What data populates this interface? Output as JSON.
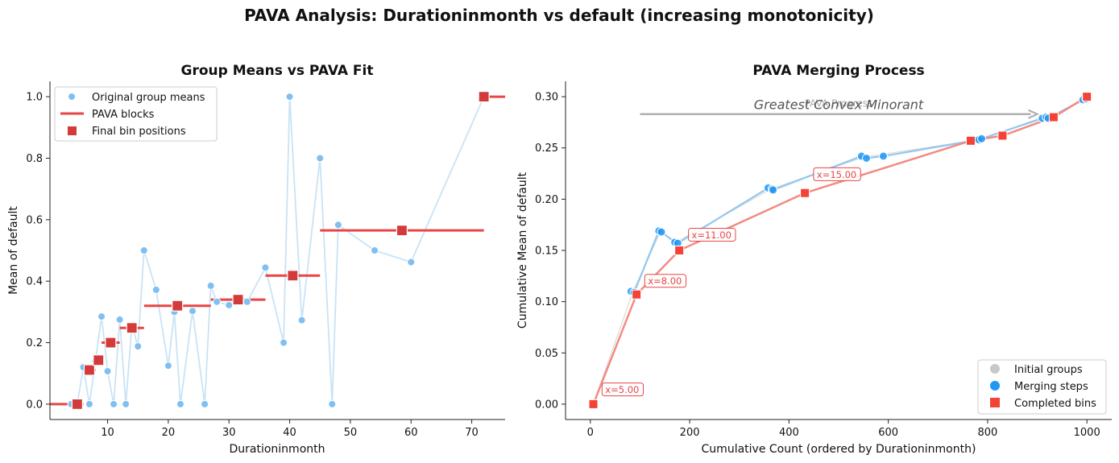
{
  "suptitle": "PAVA Analysis: Durationinmonth vs default (increasing monotonicity)",
  "colors": {
    "original": "#7fbff2",
    "original_line": "#c9e3f5",
    "pava": "#e84545",
    "bin_marker": "#d33b3b",
    "merge": "#2196f3",
    "merge_line": "#92c7ef",
    "initial": "#c8c8c8",
    "gcm_line": "#f28b82",
    "progress_arrow": "#b0b0b0"
  },
  "chart_data": [
    {
      "type": "scatter",
      "title": "Group Means vs PAVA Fit",
      "xlabel": "Durationinmonth",
      "ylabel": "Mean of default",
      "xlim": [
        0.5,
        75.5
      ],
      "ylim": [
        -0.05,
        1.05
      ],
      "xticks": [
        10,
        20,
        30,
        40,
        50,
        60,
        70
      ],
      "yticks": [
        0.0,
        0.2,
        0.4,
        0.6,
        0.8,
        1.0
      ],
      "ytick_labels": [
        "0.0",
        "0.2",
        "0.4",
        "0.6",
        "0.8",
        "1.0"
      ],
      "legend": {
        "position": "top-left",
        "entries": [
          "Original group means",
          "PAVA blocks",
          "Final bin positions"
        ]
      },
      "series": [
        {
          "name": "Original group means",
          "kind": "scatter-line",
          "x": [
            4,
            5,
            6,
            7,
            8,
            9,
            10,
            11,
            12,
            13,
            14,
            15,
            16,
            18,
            20,
            21,
            22,
            24,
            26,
            27,
            28,
            30,
            33,
            36,
            39,
            40,
            42,
            45,
            47,
            48,
            54,
            60,
            72
          ],
          "y": [
            0.0,
            0.0,
            0.12,
            0.0,
            0.14,
            0.285,
            0.107,
            0.0,
            0.275,
            0.0,
            0.257,
            0.188,
            0.5,
            0.372,
            0.125,
            0.3,
            0.0,
            0.303,
            0.0,
            0.385,
            0.333,
            0.322,
            0.333,
            0.444,
            0.2,
            1.0,
            0.273,
            0.8,
            0.0,
            0.583,
            0.5,
            0.462,
            1.0
          ]
        },
        {
          "name": "PAVA blocks",
          "kind": "segments",
          "segments": [
            {
              "x0": 0.5,
              "x1": 6,
              "y": 0.0
            },
            {
              "x0": 6,
              "x1": 8,
              "y": 0.111
            },
            {
              "x0": 8,
              "x1": 9,
              "y": 0.143
            },
            {
              "x0": 9,
              "x1": 12,
              "y": 0.2
            },
            {
              "x0": 12,
              "x1": 16,
              "y": 0.248
            },
            {
              "x0": 16,
              "x1": 27,
              "y": 0.32
            },
            {
              "x0": 27,
              "x1": 36,
              "y": 0.34
            },
            {
              "x0": 36,
              "x1": 45,
              "y": 0.418
            },
            {
              "x0": 45,
              "x1": 72,
              "y": 0.565
            },
            {
              "x0": 72,
              "x1": 75.5,
              "y": 1.0
            }
          ]
        },
        {
          "name": "Final bin positions",
          "kind": "square",
          "x": [
            5,
            7,
            8.5,
            10.5,
            14,
            21.5,
            31.5,
            40.5,
            58.5,
            72
          ],
          "y": [
            0.0,
            0.111,
            0.143,
            0.2,
            0.248,
            0.32,
            0.34,
            0.418,
            0.565,
            1.0
          ]
        }
      ]
    },
    {
      "type": "line",
      "title": "PAVA Merging Process",
      "xlabel": "Cumulative Count (ordered by Durationinmonth)",
      "ylabel": "Cumulative Mean of default",
      "xlim": [
        -50,
        1050
      ],
      "ylim": [
        -0.015,
        0.315
      ],
      "xticks": [
        0,
        200,
        400,
        600,
        800,
        1000
      ],
      "yticks": [
        0.0,
        0.05,
        0.1,
        0.15,
        0.2,
        0.25,
        0.3
      ],
      "ytick_labels": [
        "0.00",
        "0.05",
        "0.10",
        "0.15",
        "0.20",
        "0.25",
        "0.30"
      ],
      "annotation": "Greatest Convex Minorant",
      "arrow_caption": "PAVA Progress",
      "arrow": {
        "x0": 100,
        "x1": 900,
        "y": 0.283
      },
      "legend": {
        "position": "bottom-right",
        "entries": [
          "Initial groups",
          "Merging steps",
          "Completed bins"
        ]
      },
      "series": [
        {
          "name": "Initial groups",
          "kind": "line",
          "x": [
            6,
            86,
            141,
            173,
            364,
            550,
            782,
            916,
            998
          ],
          "y": [
            0.0,
            0.11,
            0.168,
            0.158,
            0.21,
            0.241,
            0.258,
            0.279,
            0.297
          ]
        },
        {
          "name": "Merging steps",
          "kind": "scatter-line",
          "x": [
            82,
            88,
            138,
            143,
            170,
            176,
            358,
            366,
            368,
            546,
            556,
            590,
            782,
            788,
            910,
            918,
            922,
            992,
            998
          ],
          "y": [
            0.11,
            0.109,
            0.169,
            0.168,
            0.158,
            0.157,
            0.211,
            0.21,
            0.209,
            0.242,
            0.24,
            0.242,
            0.258,
            0.259,
            0.279,
            0.28,
            0.279,
            0.297,
            0.298
          ]
        },
        {
          "name": "Completed bins",
          "kind": "square-line",
          "x": [
            6,
            93,
            179,
            432,
            766,
            830,
            933,
            1000
          ],
          "y": [
            0.0,
            0.107,
            0.15,
            0.206,
            0.257,
            0.262,
            0.28,
            0.3
          ]
        }
      ],
      "labels": [
        {
          "text": "x=5.00",
          "x": 30,
          "y": 0.012
        },
        {
          "text": "x=8.00",
          "x": 116,
          "y": 0.118
        },
        {
          "text": "x=11.00",
          "x": 204,
          "y": 0.163
        },
        {
          "text": "x=15.00",
          "x": 456,
          "y": 0.222
        }
      ]
    }
  ]
}
